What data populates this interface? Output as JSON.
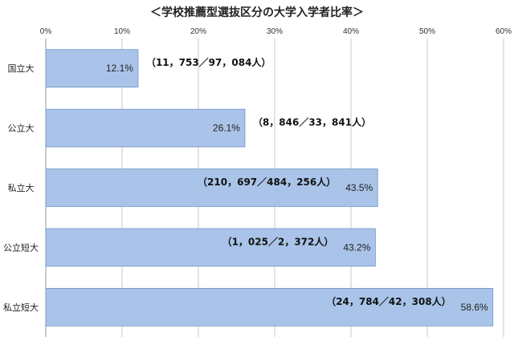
{
  "chart_data": {
    "type": "bar",
    "orientation": "horizontal",
    "title": "＜学校推薦型選抜区分の大学入学者比率＞",
    "categories": [
      "国立大",
      "公立大",
      "私立大",
      "公立短大",
      "私立短大"
    ],
    "values": [
      12.1,
      26.1,
      43.5,
      43.2,
      58.6
    ],
    "value_labels": [
      "12.1%",
      "26.1%",
      "43.5%",
      "43.2%",
      "58.6%"
    ],
    "annotations": [
      "（11，753／97，084人）",
      "（8，846／33，841人）",
      "（210，697／484，256人）",
      "（1，025／2，372人）",
      "（24，784／42，308人）"
    ],
    "xlim": [
      0,
      60
    ],
    "xticks": [
      0,
      10,
      20,
      30,
      40,
      50,
      60
    ],
    "xtick_labels": [
      "0%",
      "10%",
      "20%",
      "30%",
      "40%",
      "50%",
      "60%"
    ],
    "grid": true,
    "bar_color": "#a9c4e8",
    "bar_edge_color": "#6f94c7"
  }
}
